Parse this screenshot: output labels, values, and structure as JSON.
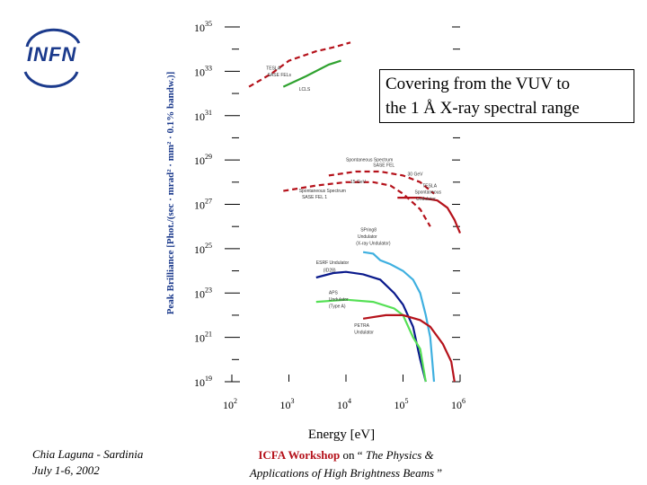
{
  "logo": {
    "text": "INFN",
    "color": "#1b3a8c"
  },
  "callout": {
    "line1": "Covering from the VUV to",
    "line2": "the 1 Å X-ray spectral range"
  },
  "footer": {
    "left_line1": "Chia Laguna - Sardinia",
    "left_line2": "July 1-6,  2002",
    "right_workshop": "ICFA Workshop",
    "right_on": " on “ ",
    "right_title1": "The Physics &",
    "right_title2": "Applications of High Brightness Beams",
    "right_close": " ”"
  },
  "chart_data": {
    "type": "line",
    "xlabel": "Energy [eV]",
    "ylabel": "Peak Brilliance [Phot./(sec · mrad² · mm² · 0.1% bandw.)]",
    "x_scale": "log",
    "y_scale": "log",
    "xlim": [
      100,
      1000000
    ],
    "ylim": [
      1e+19,
      1e+35
    ],
    "x_ticks": [
      {
        "label": "10",
        "sup": "2",
        "v": 2
      },
      {
        "label": "10",
        "sup": "3",
        "v": 3
      },
      {
        "label": "10",
        "sup": "4",
        "v": 4
      },
      {
        "label": "10",
        "sup": "5",
        "v": 5
      },
      {
        "label": "10",
        "sup": "6",
        "v": 6
      }
    ],
    "y_ticks": [
      {
        "label": "10",
        "sup": "19",
        "v": 19
      },
      {
        "label": "10",
        "sup": "21",
        "v": 21
      },
      {
        "label": "10",
        "sup": "23",
        "v": 23
      },
      {
        "label": "10",
        "sup": "25",
        "v": 25
      },
      {
        "label": "10",
        "sup": "27",
        "v": 27
      },
      {
        "label": "10",
        "sup": "29",
        "v": 29
      },
      {
        "label": "10",
        "sup": "31",
        "v": 31
      },
      {
        "label": "10",
        "sup": "33",
        "v": 33
      },
      {
        "label": "10",
        "sup": "35",
        "v": 35
      }
    ],
    "series": [
      {
        "name": "TESLA SASE FELs",
        "color": "#b5121b",
        "dash": "6,4",
        "points": [
          [
            200,
            2e+32
          ],
          [
            500,
            8e+32
          ],
          [
            1000,
            3e+33
          ],
          [
            3000,
            8e+33
          ],
          [
            6000,
            1.2e+34
          ],
          [
            12000,
            2e+34
          ]
        ]
      },
      {
        "name": "LCLS",
        "color": "#2fa22f",
        "dash": "",
        "points": [
          [
            800,
            2e+32
          ],
          [
            2000,
            6e+32
          ],
          [
            5000,
            2e+33
          ],
          [
            8200,
            3e+33
          ]
        ]
      },
      {
        "name": "Spontaneous Spectrum SASE FEL 1",
        "color": "#b5121b",
        "dash": "6,4",
        "points": [
          [
            800,
            4e+27
          ],
          [
            3000,
            7e+27
          ],
          [
            10000,
            1e+28
          ],
          [
            30000,
            1e+28
          ],
          [
            60000,
            7e+27
          ],
          [
            100000,
            3e+27
          ],
          [
            200000,
            6e+26
          ],
          [
            300000,
            1e+26
          ]
        ]
      },
      {
        "name": "Spontaneous Spectrum SASE FEL",
        "color": "#b5121b",
        "dash": "6,4",
        "points": [
          [
            5000,
            2e+28
          ],
          [
            15000,
            3e+28
          ],
          [
            40000,
            3e+28
          ],
          [
            100000,
            2e+28
          ],
          [
            200000,
            1e+28
          ],
          [
            350000,
            3e+27
          ]
        ]
      },
      {
        "name": "TESLA Spontaneous Undulator",
        "color": "#b5121b",
        "dash": "",
        "points": [
          [
            80000,
            2e+27
          ],
          [
            200000,
            2e+27
          ],
          [
            400000,
            1.5e+27
          ],
          [
            600000,
            7e+26
          ],
          [
            800000,
            2e+26
          ],
          [
            1000000,
            5e+25
          ]
        ]
      },
      {
        "name": "ESRF Undulator (ID28)",
        "color": "#0a1a8c",
        "dash": "",
        "points": [
          [
            3000,
            5e+23
          ],
          [
            6000,
            8e+23
          ],
          [
            10000,
            9e+23
          ],
          [
            20000,
            7e+23
          ],
          [
            40000,
            4e+23
          ],
          [
            70000,
            1e+23
          ],
          [
            100000,
            3e+22
          ],
          [
            150000,
            3e+21
          ],
          [
            200000,
            1e+20
          ],
          [
            250000,
            1e+19
          ]
        ]
      },
      {
        "name": "SPring8 Undulator",
        "color": "#3fb0e0",
        "dash": "",
        "points": [
          [
            20000,
            7e+24
          ],
          [
            30000,
            6e+24
          ],
          [
            40000,
            3e+24
          ],
          [
            60000,
            2e+24
          ],
          [
            100000,
            1e+24
          ],
          [
            150000,
            4e+23
          ],
          [
            200000,
            1e+23
          ],
          [
            250000,
            1e+22
          ],
          [
            300000,
            1e+21
          ],
          [
            350000,
            1e+19
          ]
        ]
      },
      {
        "name": "APS Undulator",
        "color": "#55e055",
        "dash": "",
        "points": [
          [
            3000,
            4e+22
          ],
          [
            10000,
            5e+22
          ],
          [
            30000,
            4e+22
          ],
          [
            70000,
            2e+22
          ],
          [
            100000,
            1e+22
          ],
          [
            150000,
            1e+21
          ],
          [
            200000,
            3e+20
          ],
          [
            250000,
            1e+19
          ]
        ]
      },
      {
        "name": "PETRA Undulator",
        "color": "#b5121b",
        "dash": "",
        "points": [
          [
            20000,
            7e+21
          ],
          [
            50000,
            1e+22
          ],
          [
            100000,
            1e+22
          ],
          [
            200000,
            6e+21
          ],
          [
            300000,
            3e+21
          ],
          [
            500000,
            5e+20
          ],
          [
            700000,
            8e+19
          ],
          [
            800000,
            1e+19
          ]
        ]
      }
    ],
    "annotations": [
      {
        "name": "TESLA",
        "text": "TESLA",
        "x": 400,
        "y": 1.2e+33,
        "size": 5
      },
      {
        "name": "SASE FELs",
        "text": "SASE FELs",
        "x": 420,
        "y": 6e+32,
        "size": 5
      },
      {
        "name": "LCLS",
        "text": "LCLS",
        "x": 1500,
        "y": 1.3e+32,
        "size": 5
      },
      {
        "name": "Spontaneous Spectrum SASE FEL",
        "text": "Spontaneous Spectrum",
        "x": 10000,
        "y": 9e+28,
        "size": 5
      },
      {
        "name": "SASE FEL",
        "text": "SASE FEL",
        "x": 30000,
        "y": 5e+28,
        "size": 5
      },
      {
        "name": "30 GeV",
        "text": "30 GeV",
        "x": 120000,
        "y": 2e+28,
        "size": 5
      },
      {
        "name": "15 GeV",
        "text": "15 GeV",
        "x": 12000,
        "y": 9e+27,
        "size": 5
      },
      {
        "name": "Spontaneous Spectrum SASE FEL 1",
        "text": "Spontaneous Spectrum",
        "x": 1500,
        "y": 3.5e+27,
        "size": 5
      },
      {
        "name": "SASE FEL 1",
        "text": "SASE FEL 1",
        "x": 1700,
        "y": 1.8e+27,
        "size": 5
      },
      {
        "name": "TESLA spontaneous",
        "text": "TESLA",
        "x": 220000,
        "y": 6e+27,
        "size": 5
      },
      {
        "name": "Spontaneous",
        "text": "Spontaneous",
        "x": 160000,
        "y": 3e+27,
        "size": 5
      },
      {
        "name": "Undulator TESLA",
        "text": "Undulator",
        "x": 170000,
        "y": 1.5e+27,
        "size": 5
      },
      {
        "name": "SPring8",
        "text": "SPring8",
        "x": 18000,
        "y": 6e+25,
        "size": 5
      },
      {
        "name": "Undulator SPring8",
        "text": "Undulator",
        "x": 16000,
        "y": 3e+25,
        "size": 5
      },
      {
        "name": "(X-ray Undulator)",
        "text": "(X-ray Undulator)",
        "x": 15000,
        "y": 1.5e+25,
        "size": 5
      },
      {
        "name": "ESRF Undulator",
        "text": "ESRF Undulator",
        "x": 3000,
        "y": 2e+24,
        "size": 5
      },
      {
        "name": "(ID28)",
        "text": "(ID28)",
        "x": 4000,
        "y": 9e+23,
        "size": 5
      },
      {
        "name": "APS",
        "text": "APS",
        "x": 5000,
        "y": 9e+22,
        "size": 5
      },
      {
        "name": "Undulator APS",
        "text": "Undulator",
        "x": 5000,
        "y": 4.5e+22,
        "size": 5
      },
      {
        "name": "(Type A)",
        "text": "(Type A)",
        "x": 5000,
        "y": 2.2e+22,
        "size": 5
      },
      {
        "name": "PETRA",
        "text": "PETRA",
        "x": 14000,
        "y": 3e+21,
        "size": 5
      },
      {
        "name": "Undulator PETRA",
        "text": "Undulator",
        "x": 14000,
        "y": 1.5e+21,
        "size": 5
      }
    ]
  }
}
